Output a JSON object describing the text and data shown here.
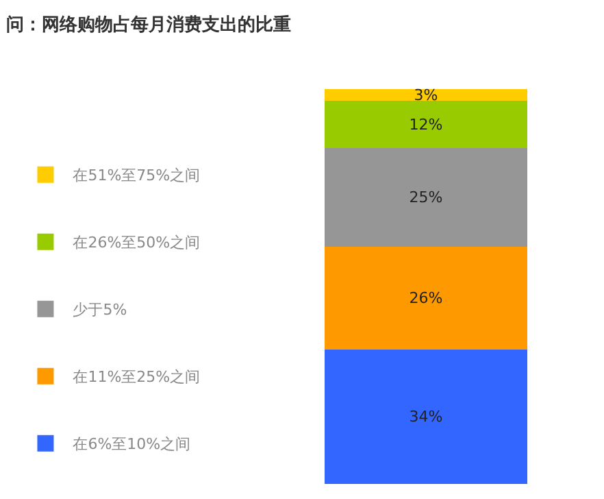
{
  "chart_data": {
    "type": "bar",
    "title": "问：网络购物占每月消费支出的比重",
    "categories": [
      null
    ],
    "stacked": true,
    "series": [
      {
        "name": "在6%至10%之间",
        "color": "#3366ff",
        "values": [
          34
        ],
        "value_labels": [
          "34%"
        ]
      },
      {
        "name": "在11%至25%之间",
        "color": "#ff9900",
        "values": [
          26
        ],
        "value_labels": [
          "26%"
        ]
      },
      {
        "name": "少于5%",
        "color": "#969696",
        "values": [
          25
        ],
        "value_labels": [
          "25%"
        ]
      },
      {
        "name": "在26%至50%之间",
        "color": "#99cc00",
        "values": [
          12
        ],
        "value_labels": [
          "12%"
        ]
      },
      {
        "name": "在51%至75%之间",
        "color": "#ffcc00",
        "values": [
          3
        ],
        "value_labels": [
          "3%"
        ]
      }
    ],
    "ylim": [
      0,
      100
    ],
    "legend": "left"
  }
}
